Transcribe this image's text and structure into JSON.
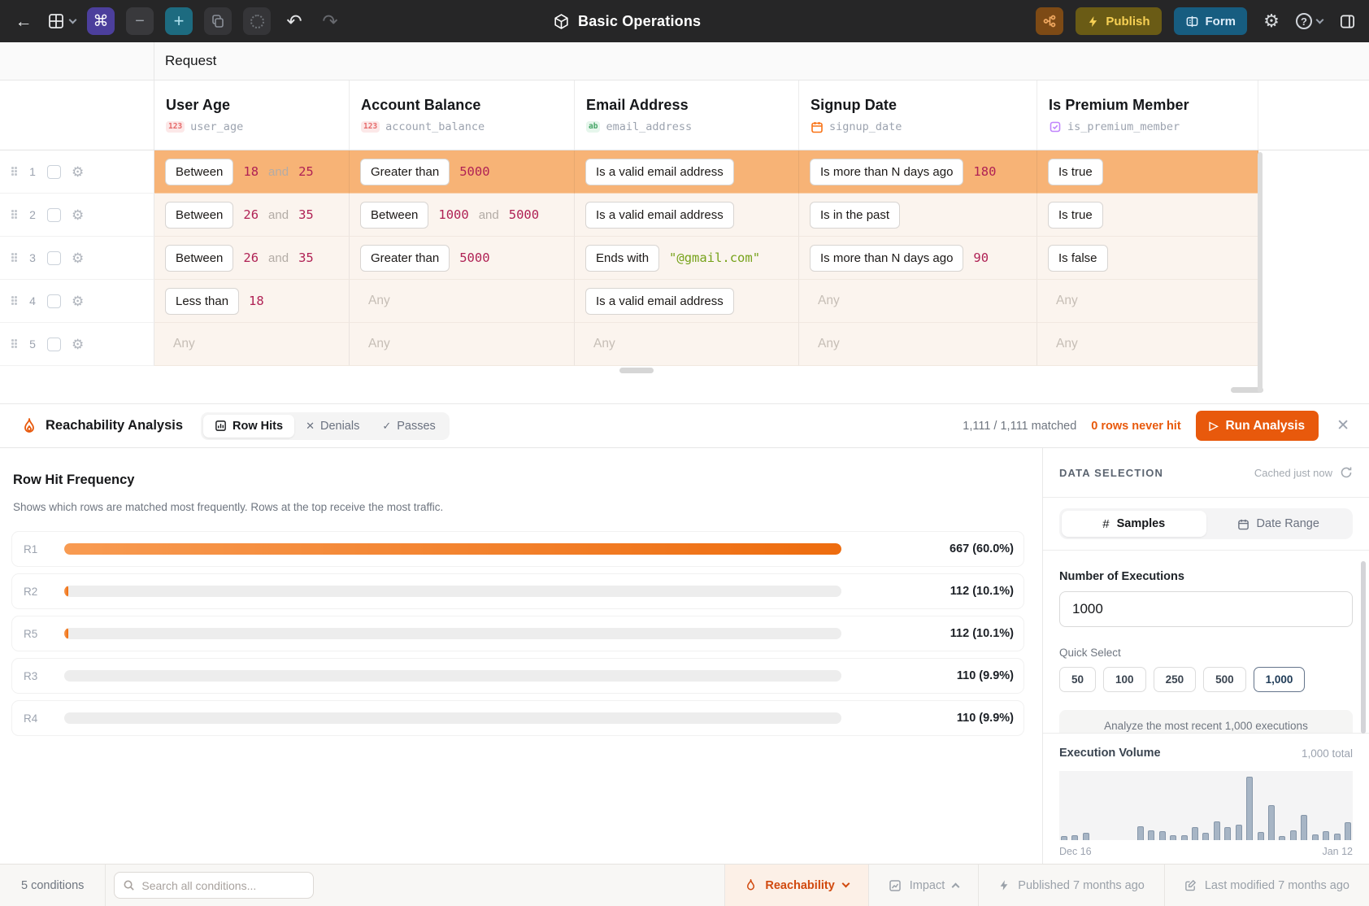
{
  "colors": {
    "accent_orange": "#e8590c",
    "row_highlight": "#f7b376",
    "row_bg": "#fbf4ee",
    "value_red": "#b02255",
    "string_green": "#76a21a",
    "hit_bar_gradient": [
      "#f89b52",
      "#ee6c0e"
    ],
    "volume_bar": "#a7b5c5"
  },
  "topbar": {
    "title": "Basic Operations",
    "publish_label": "Publish",
    "form_label": "Form"
  },
  "table": {
    "request_label": "Request",
    "any_label": "Any",
    "columns": [
      {
        "title": "User Age",
        "field": "user_age",
        "type": "number",
        "badge": "123"
      },
      {
        "title": "Account Balance",
        "field": "account_balance",
        "type": "number",
        "badge": "123"
      },
      {
        "title": "Email Address",
        "field": "email_address",
        "type": "string",
        "badge": "ab"
      },
      {
        "title": "Signup Date",
        "field": "signup_date",
        "type": "date",
        "icon": "calendar-icon"
      },
      {
        "title": "Is Premium Member",
        "field": "is_premium_member",
        "type": "boolean",
        "icon": "checkbox-icon"
      }
    ],
    "rows": [
      {
        "num": "1",
        "highlighted": true,
        "cells": [
          {
            "chip": "Between",
            "parts": [
              [
                "num",
                "18"
              ],
              [
                "conj",
                "and"
              ],
              [
                "num",
                "25"
              ]
            ]
          },
          {
            "chip": "Greater than",
            "parts": [
              [
                "num",
                "5000"
              ]
            ]
          },
          {
            "chip": "Is a valid email address",
            "parts": []
          },
          {
            "chip": "Is more than N days ago",
            "parts": [
              [
                "num",
                "180"
              ]
            ]
          },
          {
            "chip": "Is true",
            "parts": []
          }
        ]
      },
      {
        "num": "2",
        "highlighted": false,
        "cells": [
          {
            "chip": "Between",
            "parts": [
              [
                "num",
                "26"
              ],
              [
                "conj",
                "and"
              ],
              [
                "num",
                "35"
              ]
            ]
          },
          {
            "chip": "Between",
            "parts": [
              [
                "num",
                "1000"
              ],
              [
                "conj",
                "and"
              ],
              [
                "num",
                "5000"
              ]
            ]
          },
          {
            "chip": "Is a valid email address",
            "parts": []
          },
          {
            "chip": "Is in the past",
            "parts": []
          },
          {
            "chip": "Is true",
            "parts": []
          }
        ]
      },
      {
        "num": "3",
        "highlighted": false,
        "cells": [
          {
            "chip": "Between",
            "parts": [
              [
                "num",
                "26"
              ],
              [
                "conj",
                "and"
              ],
              [
                "num",
                "35"
              ]
            ]
          },
          {
            "chip": "Greater than",
            "parts": [
              [
                "num",
                "5000"
              ]
            ]
          },
          {
            "chip": "Ends with",
            "parts": [
              [
                "str",
                "\"@gmail.com\""
              ]
            ]
          },
          {
            "chip": "Is more than N days ago",
            "parts": [
              [
                "num",
                "90"
              ]
            ]
          },
          {
            "chip": "Is false",
            "parts": []
          }
        ]
      },
      {
        "num": "4",
        "highlighted": false,
        "cells": [
          {
            "chip": "Less than",
            "parts": [
              [
                "num",
                "18"
              ]
            ]
          },
          {
            "any": true
          },
          {
            "chip": "Is a valid email address",
            "parts": []
          },
          {
            "any": true
          },
          {
            "any": true
          }
        ]
      },
      {
        "num": "5",
        "highlighted": false,
        "cells": [
          {
            "any": true
          },
          {
            "any": true
          },
          {
            "any": true
          },
          {
            "any": true
          },
          {
            "any": true
          }
        ]
      }
    ]
  },
  "analysis": {
    "title": "Reachability Analysis",
    "tabs": [
      {
        "label": "Row Hits",
        "icon": "bar-chart-icon",
        "active": true
      },
      {
        "label": "Denials",
        "icon": "x-icon",
        "active": false
      },
      {
        "label": "Passes",
        "icon": "check-icon",
        "active": false
      }
    ],
    "matched": "1,111 / 1,111 matched",
    "never_hit": "0 rows never hit",
    "run_button": "Run Analysis"
  },
  "hit_chart": {
    "title": "Row Hit Frequency",
    "subtitle": "Shows which rows are matched most frequently. Rows at the top receive the most traffic.",
    "bars": [
      {
        "label": "R1",
        "value_label": "667 (60.0%)",
        "fill_pct": 100
      },
      {
        "label": "R2",
        "value_label": "112 (10.1%)",
        "fill_pct": 0.55
      },
      {
        "label": "R5",
        "value_label": "112 (10.1%)",
        "fill_pct": 0.55
      },
      {
        "label": "R3",
        "value_label": "110 (9.9%)",
        "fill_pct": 0
      },
      {
        "label": "R4",
        "value_label": "110 (9.9%)",
        "fill_pct": 0
      }
    ]
  },
  "panel": {
    "header": "DATA SELECTION",
    "cached": "Cached just now",
    "tabs": [
      {
        "label": "Samples",
        "icon": "hash-icon",
        "active": true
      },
      {
        "label": "Date Range",
        "icon": "calendar-icon",
        "active": false
      }
    ],
    "executions_label": "Number of Executions",
    "executions_value": "1000",
    "quick_select_label": "Quick Select",
    "quick_options": [
      "50",
      "100",
      "250",
      "500",
      "1,000"
    ],
    "quick_selected": "1,000",
    "note": "Analyze the most recent 1,000 executions",
    "volume_title": "Execution Volume",
    "volume_total": "1,000 total",
    "x_start": "Dec 16",
    "x_end": "Jan 12"
  },
  "bottombar": {
    "conditions": "5 conditions",
    "search_placeholder": "Search all conditions...",
    "reachability": "Reachability",
    "impact": "Impact",
    "published": "Published 7 months ago",
    "modified": "Last modified 7 months ago"
  },
  "chart_data": [
    {
      "type": "bar",
      "orientation": "horizontal",
      "title": "Row Hit Frequency",
      "subtitle": "Shows which rows are matched most frequently. Rows at the top receive the most traffic.",
      "categories": [
        "R1",
        "R2",
        "R5",
        "R3",
        "R4"
      ],
      "values": [
        667,
        112,
        112,
        110,
        110
      ],
      "percents": [
        60.0,
        10.1,
        10.1,
        9.9,
        9.9
      ],
      "data_labels": [
        "667 (60.0%)",
        "112 (10.1%)",
        "112 (10.1%)",
        "110 (9.9%)",
        "110 (9.9%)"
      ],
      "total": "1,111 / 1,111 matched",
      "grid": false,
      "legend": false
    },
    {
      "type": "bar",
      "orientation": "vertical",
      "title": "Execution Volume",
      "total_label": "1,000 total",
      "xlabel_start": "Dec 16",
      "xlabel_end": "Jan 12",
      "values_relative_pct": [
        7,
        8,
        11,
        0,
        0,
        0,
        0,
        22,
        16,
        14,
        8,
        8,
        20,
        12,
        30,
        20,
        24,
        100,
        13,
        55,
        6,
        16,
        40,
        9,
        14,
        10,
        28
      ],
      "grid": false,
      "legend": false
    }
  ]
}
